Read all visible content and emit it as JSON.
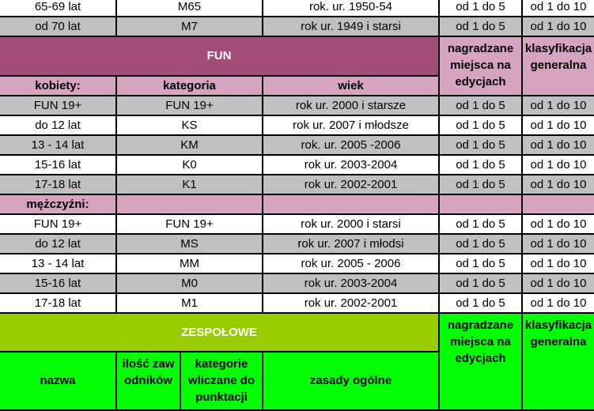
{
  "colors": {
    "grey": "#c0c0c0",
    "white": "#ffffff",
    "fun_header": "#a44c78",
    "fun_sub": "#d6a4c0",
    "team_header": "#99cc00",
    "team_sub": "#00ff00"
  },
  "top_rows": [
    {
      "age": "65-69 lat",
      "category": "M65",
      "birth": "rok. ur. 1950-54",
      "places": "od 1 do 5",
      "general": "od 1 do 10",
      "shade": "white"
    },
    {
      "age": "od 70 lat",
      "category": "M7",
      "birth": "rok ur. 1949 i starsi",
      "places": "od 1 do 5",
      "general": "od 1 do 10",
      "shade": "grey"
    }
  ],
  "fun": {
    "title": "FUN",
    "places_header": "nagradzane miejsca na edycjach",
    "general_header": "klasyfikacja generalna",
    "women_label": "kobiety:",
    "category_header": "kategoria",
    "age_header": "wiek",
    "women": [
      {
        "age": "FUN 19+",
        "category": "FUN 19+",
        "birth": "rok ur. 2000 i starsze",
        "places": "od 1 do 5",
        "general": "od 1 do 10",
        "shade": "grey"
      },
      {
        "age": "do 12 lat",
        "category": "KS",
        "birth": "rok ur. 2007 i młodsze",
        "places": "od 1 do 5",
        "general": "od 1 do 10",
        "shade": "white"
      },
      {
        "age": "13 - 14 lat",
        "category": "KM",
        "birth": "rok. ur. 2005 -2006",
        "places": "od 1 do 5",
        "general": "od 1 do 10",
        "shade": "grey"
      },
      {
        "age": "15-16 lat",
        "category": "K0",
        "birth": "rok ur. 2003-2004",
        "places": "od 1 do 5",
        "general": "od 1 do 10",
        "shade": "white"
      },
      {
        "age": "17-18 lat",
        "category": "K1",
        "birth": "rok ur. 2002-2001",
        "places": "od 1 do 5",
        "general": "od 1 do 10",
        "shade": "grey"
      }
    ],
    "men_label": "mężczyźni:",
    "men": [
      {
        "age": "FUN 19+",
        "category": "FUN 19+",
        "birth": "rok ur. 2000 i starsi",
        "places": "od 1 do 5",
        "general": "od 1 do 10",
        "shade": "white"
      },
      {
        "age": "do 12 lat",
        "category": "MS",
        "birth": "rok ur. 2007 i młodsi",
        "places": "od 1 do 5",
        "general": "od 1 do 10",
        "shade": "grey"
      },
      {
        "age": "13 - 14 lat",
        "category": "MM",
        "birth": "rok ur. 2005 - 2006",
        "places": "od 1 do 5",
        "general": "od 1 do 10",
        "shade": "white"
      },
      {
        "age": "15-16 lat",
        "category": "M0",
        "birth": "rok ur. 2003-2004",
        "places": "od 1 do 5",
        "general": "od 1 do 10",
        "shade": "grey"
      },
      {
        "age": "17-18 lat",
        "category": "M1",
        "birth": "rok ur. 2002-2001",
        "places": "od 1 do 5",
        "general": "od 1 do 10",
        "shade": "white"
      }
    ]
  },
  "team": {
    "title": "ZESPOŁOWE",
    "places_header": "nagradzane miejsca na edycjach",
    "general_header": "klasyfikacja generalna",
    "name_header": "nazwa",
    "count_header": "ilość zawodników",
    "categories_header": "kategorie wliczane do punktacji",
    "rules_header": "zasady ogólne"
  }
}
